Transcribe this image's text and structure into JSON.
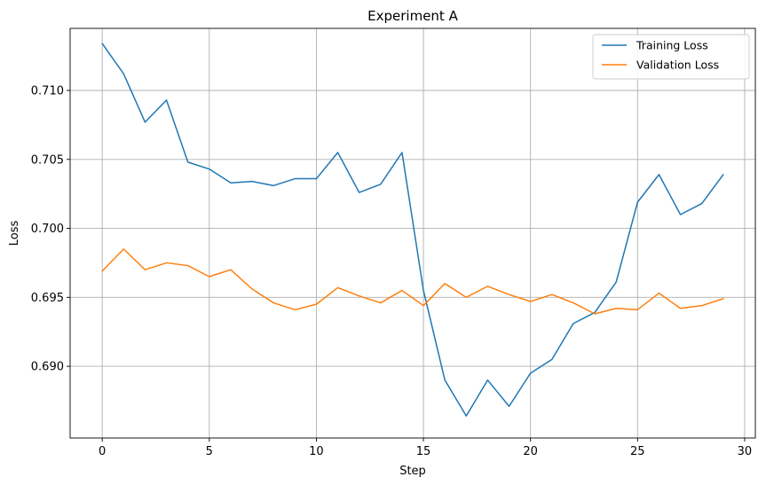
{
  "chart_data": {
    "type": "line",
    "title": "Experiment A",
    "xlabel": "Step",
    "ylabel": "Loss",
    "xlim": [
      -1.5,
      30.5
    ],
    "ylim": [
      0.6848,
      0.7145
    ],
    "x_ticks": [
      0,
      5,
      10,
      15,
      20,
      25,
      30
    ],
    "y_ticks": [
      0.69,
      0.695,
      0.7,
      0.705,
      0.71
    ],
    "x_tick_labels": [
      "0",
      "5",
      "10",
      "15",
      "20",
      "25",
      "30"
    ],
    "y_tick_labels": [
      "0.690",
      "0.695",
      "0.700",
      "0.705",
      "0.710"
    ],
    "grid": true,
    "legend_position": "top-right",
    "x": [
      0,
      1,
      2,
      3,
      4,
      5,
      6,
      7,
      8,
      9,
      10,
      11,
      12,
      13,
      14,
      15,
      16,
      17,
      18,
      19,
      20,
      21,
      22,
      23,
      24,
      25,
      26,
      27,
      28,
      29
    ],
    "series": [
      {
        "name": "Training Loss",
        "color": "#1f77b4",
        "values": [
          0.7134,
          0.7112,
          0.7077,
          0.7093,
          0.7048,
          0.7043,
          0.7033,
          0.7034,
          0.7031,
          0.7036,
          0.7036,
          0.7055,
          0.7026,
          0.7032,
          0.7055,
          0.6955,
          0.689,
          0.6864,
          0.689,
          0.6871,
          0.6895,
          0.6905,
          0.6931,
          0.6939,
          0.6961,
          0.7019,
          0.7039,
          0.701,
          0.7018,
          0.7039
        ]
      },
      {
        "name": "Validation Loss",
        "color": "#ff7f0e",
        "values": [
          0.6969,
          0.6985,
          0.697,
          0.6975,
          0.6973,
          0.6965,
          0.697,
          0.6956,
          0.6946,
          0.6941,
          0.6945,
          0.6957,
          0.6951,
          0.6946,
          0.6955,
          0.6944,
          0.696,
          0.695,
          0.6958,
          0.6952,
          0.6947,
          0.6952,
          0.6946,
          0.6938,
          0.6942,
          0.6941,
          0.6953,
          0.6942,
          0.6944,
          0.6949
        ]
      }
    ]
  }
}
